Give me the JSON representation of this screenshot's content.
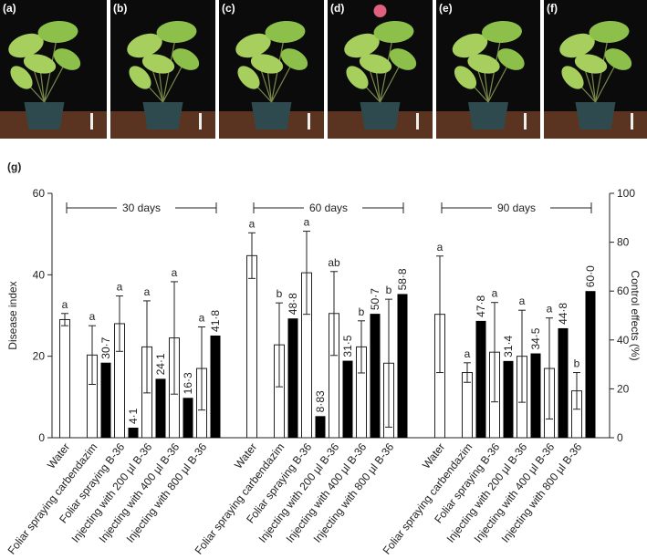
{
  "photos": [
    "(a)",
    "(b)",
    "(c)",
    "(d)",
    "(e)",
    "(f)"
  ],
  "chart_data": {
    "type": "bar",
    "title": "(g)",
    "y_label": "Disease index",
    "y2_label": "Control effects (%)",
    "ylim": [
      0,
      60
    ],
    "yticks": [
      0,
      20,
      40,
      60
    ],
    "y2lim": [
      0,
      100
    ],
    "y2ticks": [
      0,
      20,
      40,
      60,
      80,
      100
    ],
    "categories": [
      "Water",
      "Foliar spraying carbendazim",
      "Foliar spraying B-36",
      "Injecting with 200 µl B-36",
      "Injecting with 400 µl B-36",
      "Injecting with 800 µl B-36"
    ],
    "groups": [
      {
        "label": "30 days",
        "disease_index": {
          "values": [
            29,
            20.3,
            28,
            22.3,
            24.5,
            17
          ],
          "errors": [
            1.5,
            7.2,
            6.8,
            11.3,
            13.8,
            10.2
          ],
          "letters": [
            "a",
            "a",
            "a",
            "a",
            "a",
            "a"
          ]
        },
        "control_effects": {
          "axis": "y2",
          "values": [
            null,
            30.7,
            4.1,
            24.1,
            16.3,
            41.8
          ],
          "value_labels": [
            null,
            "30·7",
            "4·1",
            "24·1",
            "16·3",
            "41·8"
          ]
        }
      },
      {
        "label": "60 days",
        "disease_index": {
          "values": [
            44.7,
            22.8,
            40.5,
            30.5,
            22.3,
            18.3
          ],
          "errors": [
            5.6,
            10.3,
            10.2,
            10.3,
            6.4,
            15.7
          ],
          "letters": [
            "a",
            "b",
            "a",
            "ab",
            "b",
            "b"
          ]
        },
        "control_effects": {
          "axis": "y2",
          "values": [
            null,
            48.8,
            8.83,
            31.5,
            50.7,
            58.8
          ],
          "value_labels": [
            null,
            "48·8",
            "8·83",
            "31·5",
            "50·7",
            "58·8"
          ]
        }
      },
      {
        "label": "90 days",
        "disease_index": {
          "values": [
            30.3,
            16,
            21,
            20,
            17,
            11.5
          ],
          "errors": [
            14.3,
            2.4,
            12.2,
            11.3,
            12.4,
            4.5
          ],
          "letters": [
            "a",
            "a",
            "a",
            "a",
            "a",
            "b"
          ]
        },
        "control_effects": {
          "axis": "y2",
          "values": [
            null,
            47.8,
            31.4,
            34.5,
            44.8,
            60
          ],
          "value_labels": [
            null,
            "47·8",
            "31·4",
            "34·5",
            "44·8",
            "60·0"
          ]
        }
      }
    ]
  }
}
